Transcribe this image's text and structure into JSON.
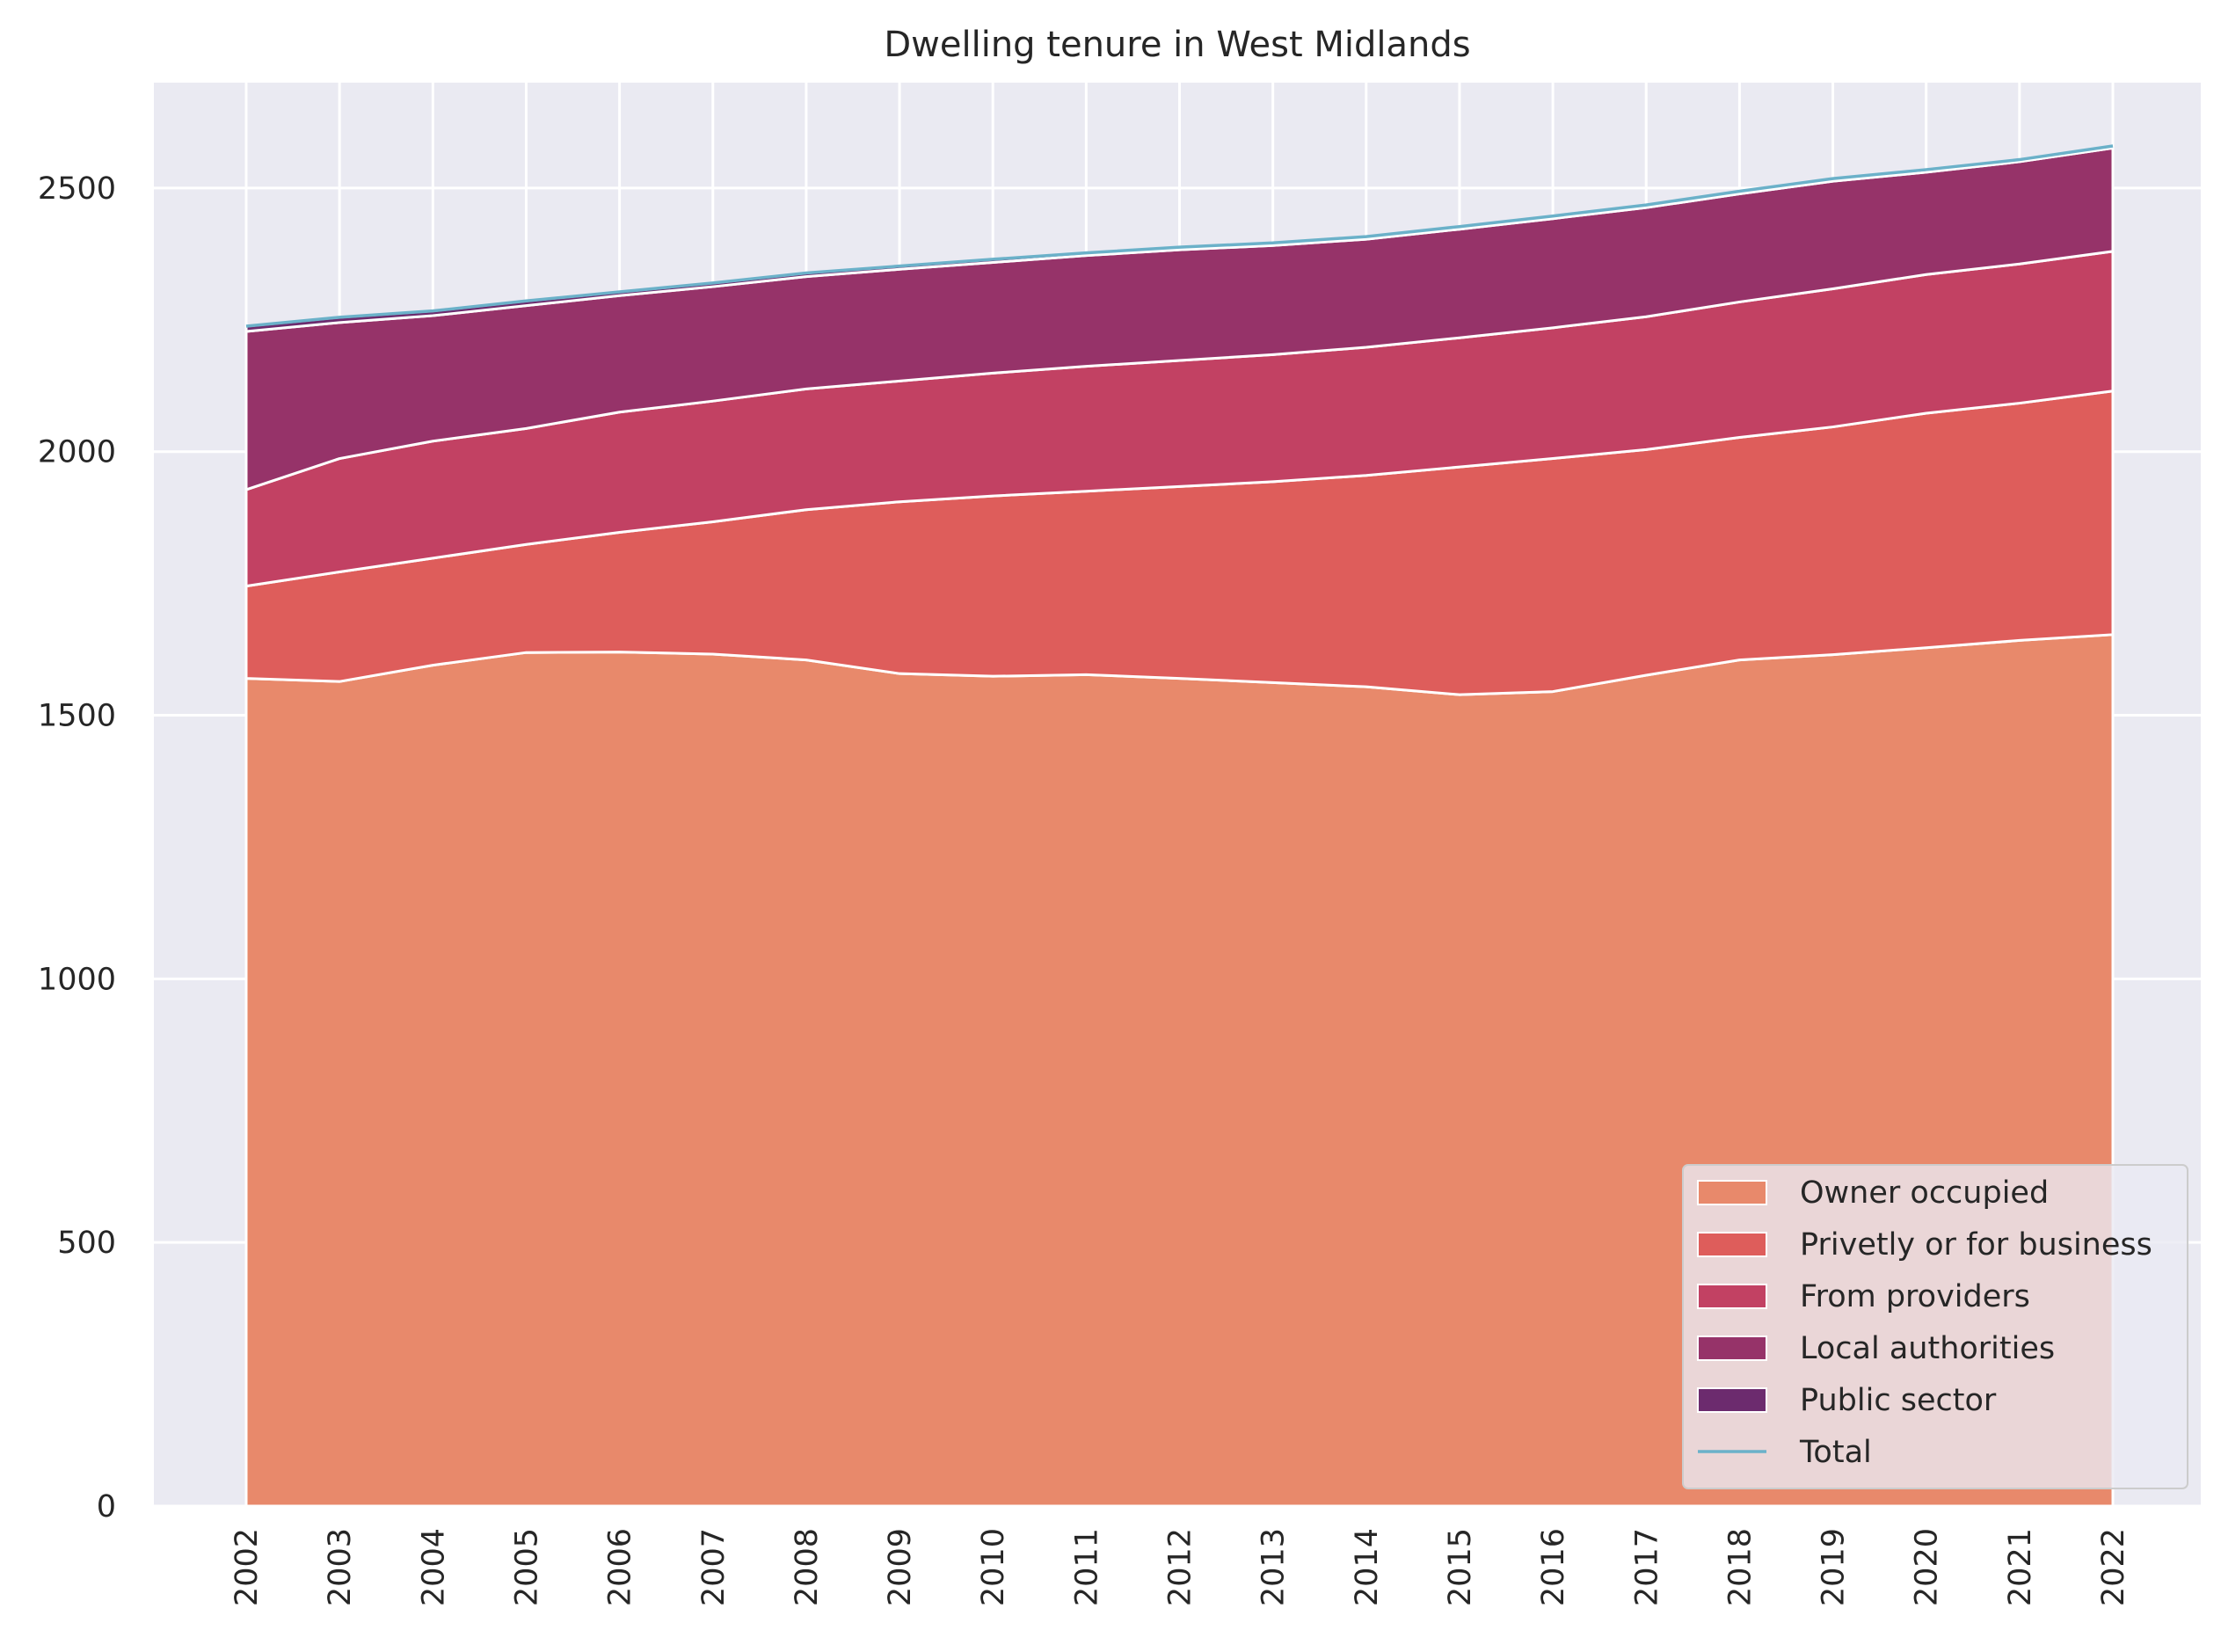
{
  "chart_data": {
    "type": "area",
    "stacked": true,
    "title": "Dwelling tenure in West Midlands",
    "xlabel": "",
    "ylabel": "",
    "x": [
      "2002",
      "2003",
      "2004",
      "2005",
      "2006",
      "2007",
      "2008",
      "2009",
      "2010",
      "2011",
      "2012",
      "2013",
      "2014",
      "2015",
      "2016",
      "2017",
      "2018",
      "2019",
      "2020",
      "2021",
      "2022"
    ],
    "ylim": [
      0,
      2700
    ],
    "yticks": [
      "0",
      "500",
      "1000",
      "1500",
      "2000",
      "2500"
    ],
    "grid": true,
    "legend_position": "lower right",
    "series": [
      {
        "name": "Owner occupied",
        "color": "#e8896b",
        "values": [
          1570,
          1564,
          1595,
          1619,
          1620,
          1616,
          1605,
          1579,
          1574,
          1577,
          1570,
          1562,
          1554,
          1539,
          1545,
          1576,
          1605,
          1615,
          1628,
          1642,
          1653
        ]
      },
      {
        "name": "Privetly or for business",
        "color": "#de5d5b",
        "values": [
          175,
          208,
          203,
          205,
          227,
          251,
          285,
          326,
          342,
          348,
          364,
          381,
          401,
          432,
          442,
          428,
          422,
          432,
          445,
          450,
          462
        ]
      },
      {
        "name": "From providers",
        "color": "#c24163",
        "values": [
          183,
          215,
          222,
          220,
          228,
          229,
          229,
          229,
          233,
          237,
          239,
          241,
          243,
          245,
          248,
          252,
          257,
          262,
          263,
          264,
          265
        ]
      },
      {
        "name": "Local authorities",
        "color": "#963369",
        "values": [
          300,
          258,
          238,
          233,
          221,
          217,
          213,
          212,
          210,
          210,
          210,
          207,
          205,
          206,
          207,
          207,
          205,
          204,
          194,
          194,
          196
        ]
      },
      {
        "name": "Public sector",
        "color": "#6c2b6e",
        "values": [
          10,
          10,
          9,
          9,
          7,
          7,
          7,
          6,
          6,
          5,
          5,
          5,
          5,
          5,
          5,
          5,
          5,
          5,
          5,
          4,
          4
        ]
      }
    ],
    "total": {
      "name": "Total",
      "color": "#6bb1c9",
      "values": [
        2238,
        2255,
        2267,
        2286,
        2303,
        2320,
        2339,
        2352,
        2365,
        2377,
        2388,
        2396,
        2408,
        2427,
        2447,
        2468,
        2494,
        2518,
        2535,
        2554,
        2580
      ]
    }
  }
}
